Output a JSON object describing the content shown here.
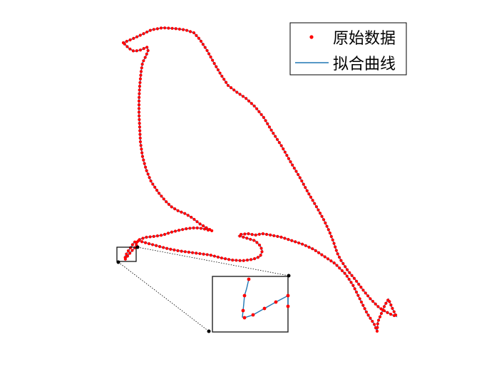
{
  "chart_data": {
    "type": "line",
    "title": "",
    "xlabel": "",
    "ylabel": "",
    "grid": false,
    "axes_visible": false,
    "legend_position": "top-right",
    "series": [
      {
        "name": "原始数据",
        "style": "markers",
        "color": "#ff0000"
      },
      {
        "name": "拟合曲线",
        "style": "line",
        "color": "#1f77b4"
      }
    ],
    "outline": [
      [
        173,
        60
      ],
      [
        185,
        55
      ],
      [
        200,
        48
      ],
      [
        212,
        42
      ],
      [
        228,
        39
      ],
      [
        245,
        40
      ],
      [
        260,
        42
      ],
      [
        272,
        46
      ],
      [
        280,
        55
      ],
      [
        290,
        70
      ],
      [
        300,
        88
      ],
      [
        310,
        105
      ],
      [
        320,
        120
      ],
      [
        333,
        130
      ],
      [
        345,
        138
      ],
      [
        358,
        150
      ],
      [
        370,
        165
      ],
      [
        382,
        185
      ],
      [
        395,
        205
      ],
      [
        408,
        228
      ],
      [
        420,
        248
      ],
      [
        432,
        270
      ],
      [
        445,
        292
      ],
      [
        455,
        310
      ],
      [
        462,
        325
      ],
      [
        468,
        340
      ],
      [
        473,
        355
      ],
      [
        478,
        365
      ],
      [
        488,
        380
      ],
      [
        498,
        392
      ],
      [
        510,
        408
      ],
      [
        520,
        420
      ],
      [
        532,
        432
      ],
      [
        542,
        438
      ],
      [
        550,
        442
      ],
      [
        556,
        444
      ],
      [
        550,
        432
      ],
      [
        545,
        420
      ],
      [
        540,
        428
      ],
      [
        535,
        440
      ],
      [
        530,
        452
      ],
      [
        529,
        465
      ],
      [
        525,
        455
      ],
      [
        515,
        440
      ],
      [
        505,
        420
      ],
      [
        495,
        400
      ],
      [
        485,
        385
      ],
      [
        470,
        370
      ],
      [
        455,
        360
      ],
      [
        440,
        350
      ],
      [
        425,
        343
      ],
      [
        410,
        338
      ],
      [
        395,
        333
      ],
      [
        380,
        330
      ],
      [
        368,
        328
      ],
      [
        358,
        330
      ],
      [
        348,
        328
      ],
      [
        338,
        329
      ],
      [
        335,
        331
      ],
      [
        345,
        334
      ],
      [
        358,
        338
      ],
      [
        365,
        345
      ],
      [
        368,
        352
      ],
      [
        365,
        360
      ],
      [
        355,
        364
      ],
      [
        340,
        366
      ],
      [
        325,
        365
      ],
      [
        310,
        362
      ],
      [
        295,
        358
      ],
      [
        280,
        356
      ],
      [
        265,
        354
      ],
      [
        250,
        352
      ],
      [
        235,
        349
      ],
      [
        220,
        345
      ],
      [
        205,
        341
      ],
      [
        195,
        338
      ],
      [
        188,
        340
      ],
      [
        185,
        345
      ],
      [
        180,
        352
      ],
      [
        176,
        359
      ],
      [
        175,
        365
      ],
      [
        180,
        358
      ],
      [
        185,
        352
      ],
      [
        190,
        347
      ],
      [
        192,
        345
      ],
      [
        190,
        342
      ],
      [
        196,
        336
      ],
      [
        205,
        333
      ],
      [
        215,
        332
      ],
      [
        228,
        330
      ],
      [
        240,
        326
      ],
      [
        252,
        323
      ],
      [
        262,
        321
      ],
      [
        270,
        320
      ],
      [
        278,
        320
      ],
      [
        285,
        321
      ],
      [
        292,
        323
      ],
      [
        298,
        324
      ],
      [
        290,
        320
      ],
      [
        280,
        314
      ],
      [
        270,
        306
      ],
      [
        260,
        300
      ],
      [
        250,
        296
      ],
      [
        240,
        290
      ],
      [
        232,
        282
      ],
      [
        222,
        270
      ],
      [
        212,
        255
      ],
      [
        205,
        238
      ],
      [
        200,
        220
      ],
      [
        197,
        200
      ],
      [
        196,
        180
      ],
      [
        195,
        160
      ],
      [
        195,
        140
      ],
      [
        196,
        120
      ],
      [
        198,
        100
      ],
      [
        200,
        88
      ],
      [
        205,
        78
      ],
      [
        208,
        70
      ],
      [
        206,
        66
      ],
      [
        198,
        70
      ],
      [
        188,
        72
      ],
      [
        181,
        68
      ],
      [
        173,
        60
      ]
    ],
    "inset_points": [
      [
        349,
        392
      ],
      [
        346,
        405
      ],
      [
        343,
        415
      ],
      [
        342,
        426
      ],
      [
        341,
        436
      ],
      [
        340,
        445
      ],
      [
        343,
        446
      ],
      [
        355,
        442
      ],
      [
        371,
        433
      ],
      [
        387,
        424
      ],
      [
        404,
        415
      ],
      [
        404,
        430
      ]
    ]
  }
}
